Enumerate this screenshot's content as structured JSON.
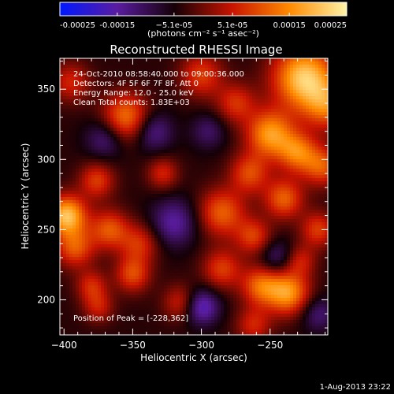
{
  "chart_data": {
    "type": "heatmap",
    "title": "Reconstructed RHESSI Image",
    "xlabel": "Heliocentric X (arcsec)",
    "ylabel": "Heliocentric Y (arcsec)",
    "xlim": [
      -403,
      -208
    ],
    "ylim": [
      175,
      372
    ],
    "x_ticks": [
      -400,
      -350,
      -300,
      -250
    ],
    "x_tick_labels": [
      "−400",
      "−350",
      "−300",
      "−250"
    ],
    "y_ticks": [
      200,
      250,
      300,
      350
    ],
    "y_tick_labels": [
      "200",
      "250",
      "300",
      "350"
    ],
    "colorbar": {
      "range": [
        -0.00025,
        0.00025
      ],
      "ticks": [
        -0.00025,
        -0.00015,
        -5.1e-05,
        5.1e-05,
        0.00015,
        0.00025
      ],
      "tick_labels": [
        "-0.00025",
        "-0.00015",
        "−5.1e-05",
        "5.1e-05",
        "0.00015",
        "0.00025"
      ],
      "unit_label": "(photons cm⁻² s⁻¹ asec⁻²)",
      "colors": [
        "#0018ff",
        "#5a1ca0",
        "#150006",
        "#c81400",
        "#ff8a00",
        "#fff4a8"
      ]
    },
    "annotations": [
      "24-Oct-2010 08:58:40.000 to 09:00:36.000",
      "Detectors: 4F 5F 6F 7F 8F, Att 0",
      "Energy Range: 12.0 - 25.0 keV",
      "Clean     Total counts: 1.83E+03"
    ],
    "peak_label": "Position of Peak = [-228,362]",
    "peak": [
      -228,
      362
    ],
    "sources": [
      {
        "x": -225,
        "y": 358,
        "amplitude": 0.00025,
        "sigma": 16
      },
      {
        "x": -208,
        "y": 338,
        "amplitude": 0.00014,
        "sigma": 12
      },
      {
        "x": -398,
        "y": 260,
        "amplitude": 0.00024,
        "sigma": 10
      },
      {
        "x": -392,
        "y": 237,
        "amplitude": 0.00014,
        "sigma": 10
      },
      {
        "x": -355,
        "y": 330,
        "amplitude": 0.00017,
        "sigma": 12
      },
      {
        "x": -395,
        "y": 355,
        "amplitude": 0.0001,
        "sigma": 10
      },
      {
        "x": -376,
        "y": 285,
        "amplitude": 0.00012,
        "sigma": 9
      },
      {
        "x": -367,
        "y": 250,
        "amplitude": 0.00014,
        "sigma": 10
      },
      {
        "x": -350,
        "y": 218,
        "amplitude": 0.00013,
        "sigma": 9
      },
      {
        "x": -380,
        "y": 210,
        "amplitude": 0.0001,
        "sigma": 8
      },
      {
        "x": -375,
        "y": 195,
        "amplitude": 9e-05,
        "sigma": 8
      },
      {
        "x": -345,
        "y": 240,
        "amplitude": 0.00011,
        "sigma": 10
      },
      {
        "x": -328,
        "y": 290,
        "amplitude": 0.0001,
        "sigma": 8
      },
      {
        "x": -300,
        "y": 360,
        "amplitude": 0.00012,
        "sigma": 11
      },
      {
        "x": -275,
        "y": 340,
        "amplitude": 0.00011,
        "sigma": 10
      },
      {
        "x": -250,
        "y": 318,
        "amplitude": 0.0002,
        "sigma": 12
      },
      {
        "x": -230,
        "y": 305,
        "amplitude": 0.00016,
        "sigma": 10
      },
      {
        "x": -212,
        "y": 295,
        "amplitude": 0.00014,
        "sigma": 10
      },
      {
        "x": -265,
        "y": 290,
        "amplitude": 0.00013,
        "sigma": 10
      },
      {
        "x": -240,
        "y": 272,
        "amplitude": 0.00015,
        "sigma": 10
      },
      {
        "x": -285,
        "y": 262,
        "amplitude": 0.00015,
        "sigma": 12
      },
      {
        "x": -262,
        "y": 245,
        "amplitude": 0.00012,
        "sigma": 9
      },
      {
        "x": -215,
        "y": 250,
        "amplitude": 0.00012,
        "sigma": 9
      },
      {
        "x": -285,
        "y": 222,
        "amplitude": 0.00012,
        "sigma": 10
      },
      {
        "x": -257,
        "y": 210,
        "amplitude": 0.00015,
        "sigma": 10
      },
      {
        "x": -237,
        "y": 205,
        "amplitude": 0.0002,
        "sigma": 11
      },
      {
        "x": -228,
        "y": 228,
        "amplitude": 9e-05,
        "sigma": 8
      },
      {
        "x": -315,
        "y": 198,
        "amplitude": 0.0001,
        "sigma": 9
      },
      {
        "x": -262,
        "y": 182,
        "amplitude": 0.0001,
        "sigma": 9
      },
      {
        "x": -300,
        "y": 195,
        "amplitude": -0.00014,
        "sigma": 9
      },
      {
        "x": -320,
        "y": 255,
        "amplitude": -0.00011,
        "sigma": 12
      },
      {
        "x": -335,
        "y": 320,
        "amplitude": -0.0001,
        "sigma": 10
      },
      {
        "x": -370,
        "y": 315,
        "amplitude": -9e-05,
        "sigma": 10
      },
      {
        "x": -245,
        "y": 230,
        "amplitude": -8e-05,
        "sigma": 9
      },
      {
        "x": -215,
        "y": 190,
        "amplitude": -8e-05,
        "sigma": 9
      },
      {
        "x": -295,
        "y": 320,
        "amplitude": -7e-05,
        "sigma": 9
      }
    ],
    "background": -4e-05
  },
  "footer": {
    "timestamp": "1-Aug-2013 23:22"
  }
}
